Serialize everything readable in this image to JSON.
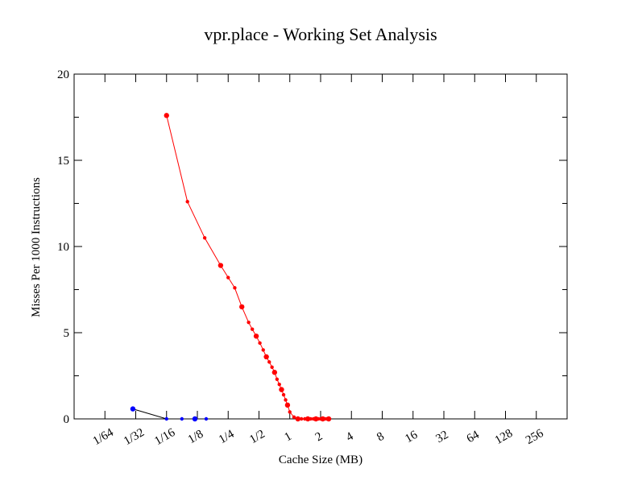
{
  "chart_data": {
    "type": "line",
    "title": "vpr.place - Working Set Analysis",
    "xlabel": "Cache Size (MB)",
    "ylabel": "Misses Per 1000 Instructions",
    "x_scale": "log2",
    "x_ticks": [
      "1/64",
      "1/32",
      "1/16",
      "1/8",
      "1/4",
      "1/2",
      "1",
      "2",
      "4",
      "8",
      "16",
      "32",
      "64",
      "128",
      "256"
    ],
    "x_tick_values": [
      0.015625,
      0.03125,
      0.0625,
      0.125,
      0.25,
      0.5,
      1,
      2,
      4,
      8,
      16,
      32,
      64,
      128,
      256
    ],
    "xlim": [
      0.0078125,
      512
    ],
    "y_ticks": [
      "0",
      "5",
      "10",
      "15",
      "20"
    ],
    "y_tick_values": [
      0,
      5,
      10,
      15,
      20
    ],
    "ylim": [
      0,
      20
    ],
    "grid": false,
    "series": [
      {
        "color": "#ff0000",
        "marker": "circle",
        "x": [
          0.0625,
          0.1,
          0.1475,
          0.211,
          0.25,
          0.29,
          0.34,
          0.396,
          0.43,
          0.47,
          0.51,
          0.55,
          0.59,
          0.63,
          0.67,
          0.71,
          0.75,
          0.79,
          0.83,
          0.87,
          0.91,
          0.95,
          1.0,
          1.1,
          1.2,
          1.3,
          1.4,
          1.5,
          1.6,
          1.7,
          1.8,
          1.9,
          2.0,
          2.1,
          2.2,
          2.3,
          2.4
        ],
        "y": [
          17.6,
          12.6,
          10.5,
          8.9,
          8.2,
          7.6,
          6.5,
          5.6,
          5.2,
          4.8,
          4.4,
          4.0,
          3.6,
          3.3,
          3.0,
          2.7,
          2.3,
          2.0,
          1.7,
          1.4,
          1.1,
          0.8,
          0.4,
          0.1,
          0.0,
          0.0,
          0.0,
          0.0,
          0.0,
          0.0,
          0.0,
          0.0,
          0.0,
          0.0,
          0.0,
          0.0,
          0.0
        ]
      },
      {
        "color": "#0000ff",
        "line_color": "#000000",
        "marker": "circle",
        "x": [
          0.0293,
          0.0625,
          0.0883,
          0.1183,
          0.1525
        ],
        "y": [
          0.58,
          0.0,
          0.0,
          0.0,
          0.0
        ]
      }
    ]
  }
}
